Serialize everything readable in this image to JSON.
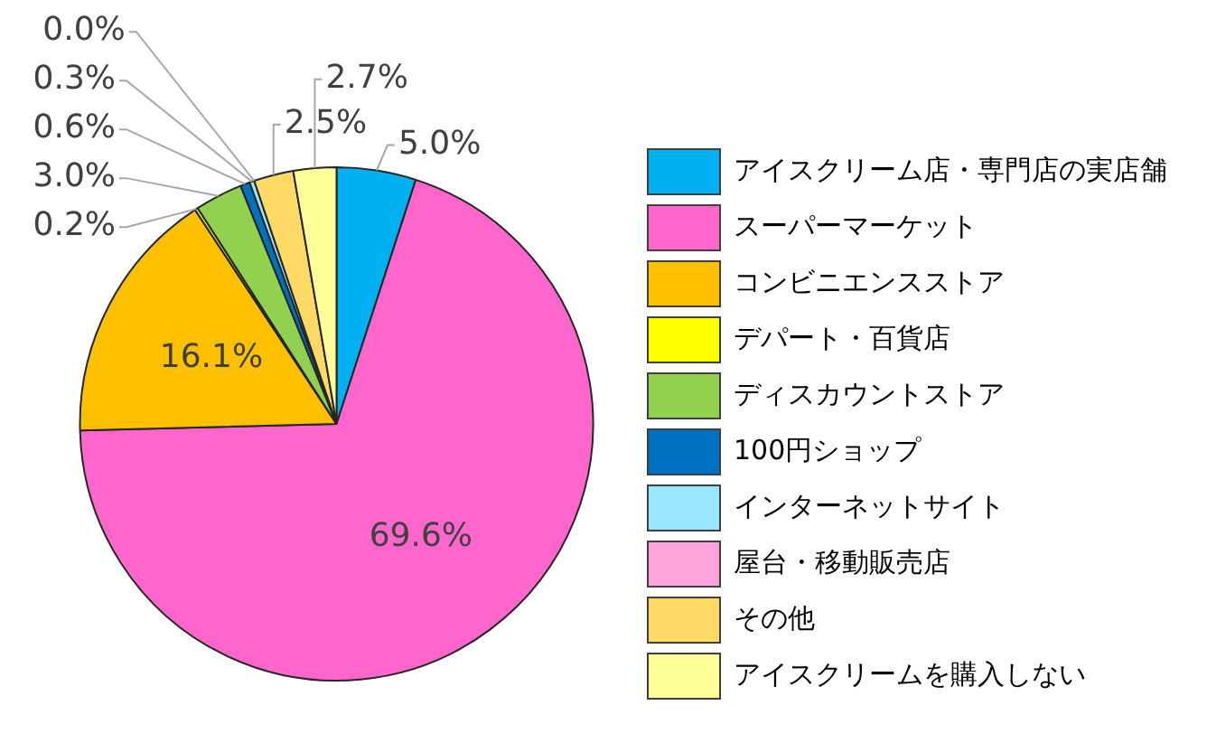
{
  "chart_data": {
    "type": "pie",
    "categories": [
      "アイスクリーム店・専門店の実店舗",
      "スーパーマーケット",
      "コンビニエンスストア",
      "デパート・百貨店",
      "ディスカウントストア",
      "100円ショップ",
      "インターネットサイト",
      "屋台・移動販売店",
      "その他",
      "アイスクリームを購入しない"
    ],
    "values": [
      5.0,
      69.6,
      16.1,
      0.2,
      3.0,
      0.6,
      0.3,
      0.0,
      2.5,
      2.7
    ],
    "value_labels": [
      "5.0%",
      "69.6%",
      "16.1%",
      "0.2%",
      "3.0%",
      "0.6%",
      "0.3%",
      "0.0%",
      "2.5%",
      "2.7%"
    ],
    "colors": [
      "#00b0f0",
      "#ff66cc",
      "#ffc000",
      "#ffff00",
      "#92d050",
      "#0070c0",
      "#99e6ff",
      "#ffa3dd",
      "#ffd966",
      "#ffff99"
    ],
    "legend": "right"
  }
}
